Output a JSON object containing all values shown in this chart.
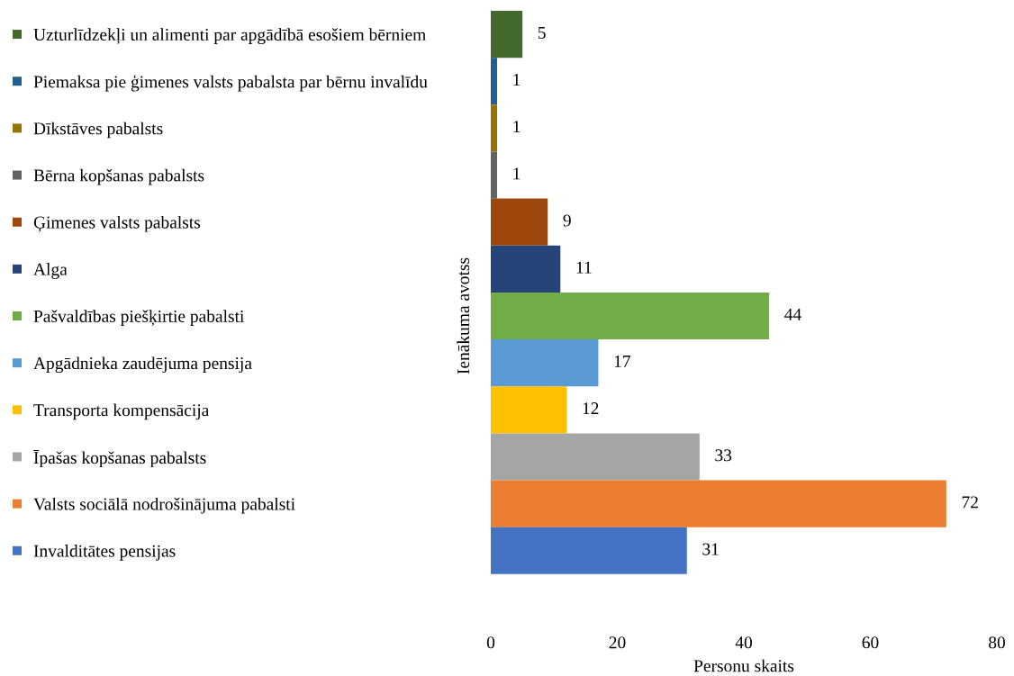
{
  "chart_data": {
    "type": "bar",
    "orientation": "horizontal",
    "xlabel": "Personu skaits",
    "ylabel": "Ienākuma avotss",
    "categories": [
      "Uzturlīdzekļi un alimenti par apgādībā esošiem bērniem",
      "Piemaksa pie ģimenes valsts pabalsta par bērnu invalīdu",
      "Dīkstāves pabalsts",
      "Bērna kopšanas pabalsts",
      "Ģimenes valsts pabalsts",
      "Alga",
      "Pašvaldības piešķirtie pabalsti",
      "Apgādnieka zaudējuma pensija",
      "Transporta kompensācija",
      "Īpašas kopšanas pabalsts",
      "Valsts sociālā nodrošinājuma pabalsti",
      "Invalditātes pensijas"
    ],
    "values": [
      5,
      1,
      1,
      1,
      9,
      11,
      44,
      17,
      12,
      33,
      72,
      31
    ],
    "colors": [
      "#43682b",
      "#255e91",
      "#997300",
      "#636363",
      "#9e480e",
      "#264478",
      "#70ad47",
      "#5b9bd5",
      "#ffc000",
      "#a5a5a5",
      "#ed7d31",
      "#4472c4"
    ],
    "xlim": [
      0,
      80
    ],
    "xticks": [
      0,
      20,
      40,
      60,
      80
    ],
    "grid": false,
    "data_labels": true
  }
}
